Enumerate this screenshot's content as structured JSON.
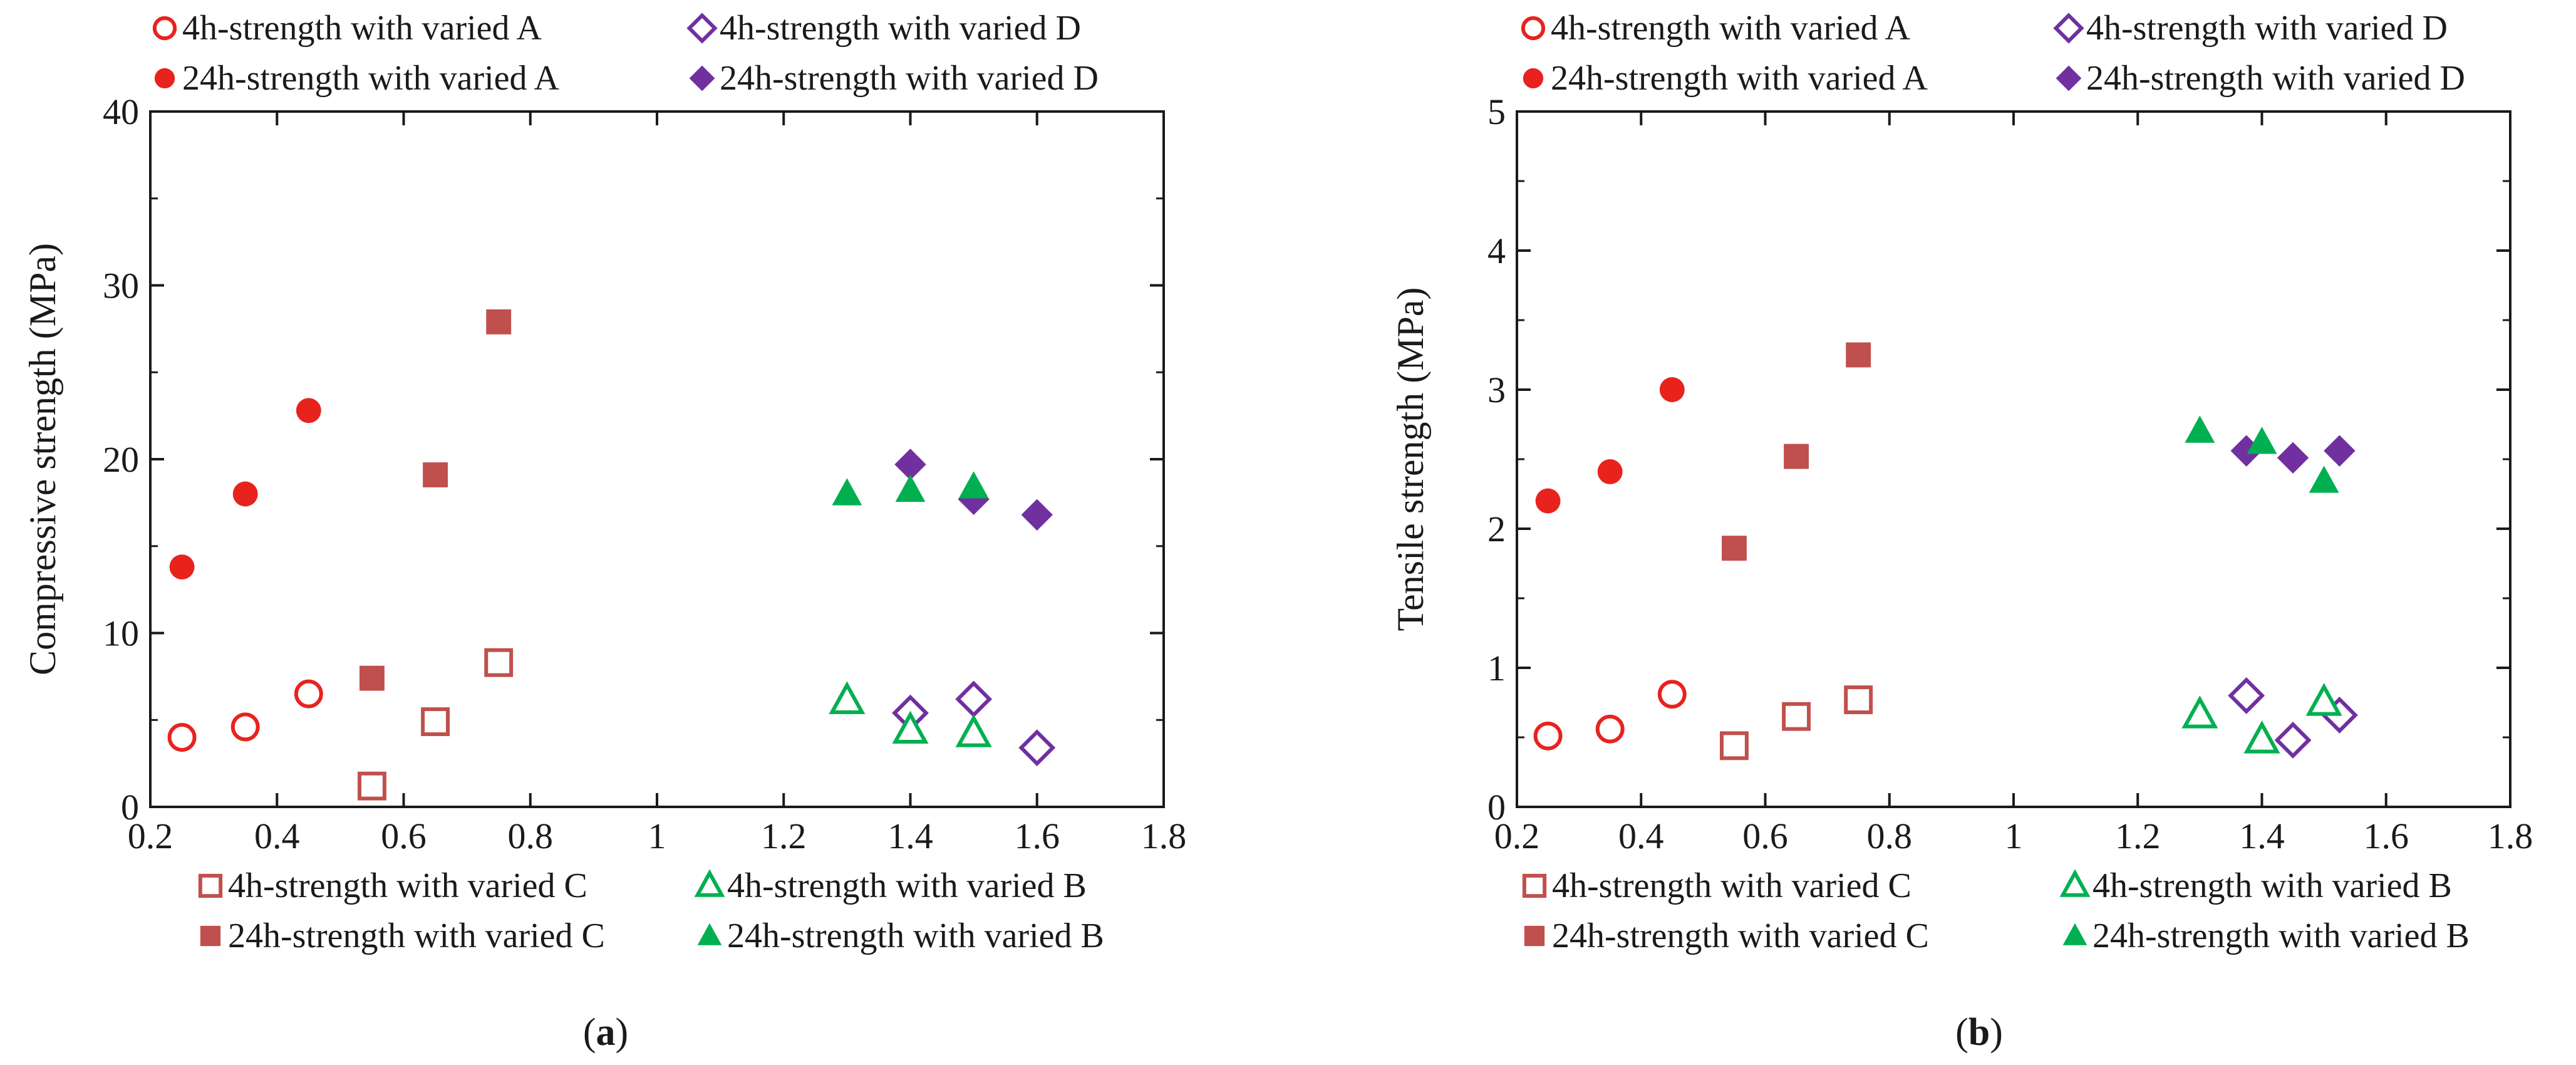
{
  "chart_data": [
    {
      "type": "scatter",
      "id": "a",
      "caption": "a",
      "title": "",
      "xlabel": "",
      "ylabel": "Compressive strength (MPa)",
      "xlim": [
        0.2,
        1.8
      ],
      "ylim": [
        0,
        40
      ],
      "xticks": [
        0.2,
        0.4,
        0.6,
        0.8,
        1,
        1.2,
        1.4,
        1.6,
        1.8
      ],
      "xtick_labels": [
        "0.2",
        "0.4",
        "0.6",
        "0.8",
        "1",
        "1.2",
        "1.4",
        "1.6",
        "1.8"
      ],
      "yticks": [
        0,
        10,
        20,
        30,
        40
      ],
      "ytick_labels": [
        "0",
        "10",
        "20",
        "30",
        "40"
      ],
      "series": [
        {
          "name": "4h-strength with varied A",
          "marker": "circle-open",
          "color": "#e8231e",
          "x": [
            0.25,
            0.35,
            0.45
          ],
          "y": [
            4.0,
            4.6,
            6.5
          ]
        },
        {
          "name": "24h-strength with varied A",
          "marker": "circle-filled",
          "color": "#e8231e",
          "x": [
            0.25,
            0.35,
            0.45
          ],
          "y": [
            13.8,
            18.0,
            22.8
          ]
        },
        {
          "name": "4h-strength with varied D",
          "marker": "diamond-open",
          "color": "#7030a0",
          "x": [
            1.4,
            1.5,
            1.6
          ],
          "y": [
            5.4,
            6.2,
            3.4
          ]
        },
        {
          "name": "24h-strength with varied D",
          "marker": "diamond-filled",
          "color": "#7030a0",
          "x": [
            1.4,
            1.5,
            1.6
          ],
          "y": [
            19.7,
            17.7,
            16.8
          ]
        },
        {
          "name": "4h-strength with varied C",
          "marker": "square-open",
          "color": "#c0504d",
          "x": [
            0.55,
            0.65,
            0.75
          ],
          "y": [
            1.2,
            4.9,
            8.3
          ]
        },
        {
          "name": "24h-strength with varied C",
          "marker": "square-filled",
          "color": "#c0504d",
          "x": [
            0.55,
            0.65,
            0.75
          ],
          "y": [
            7.4,
            19.1,
            27.9
          ]
        },
        {
          "name": "4h-strength with varied B",
          "marker": "triangle-open",
          "color": "#00b050",
          "x": [
            1.3,
            1.4,
            1.5
          ],
          "y": [
            6.1,
            4.4,
            4.2
          ]
        },
        {
          "name": "24h-strength with varied B",
          "marker": "triangle-filled",
          "color": "#00b050",
          "x": [
            1.3,
            1.4,
            1.5
          ],
          "y": [
            18.0,
            18.2,
            18.4
          ]
        }
      ],
      "legend_top": [
        "4h-strength with varied A",
        "4h-strength with varied D",
        "24h-strength with varied A",
        "24h-strength with varied D"
      ],
      "legend_bottom": [
        "4h-strength with varied C",
        "4h-strength with varied B",
        "24h-strength with varied C",
        "24h-strength with varied B"
      ]
    },
    {
      "type": "scatter",
      "id": "b",
      "caption": "b",
      "title": "",
      "xlabel": "",
      "ylabel": "Tensile strength (MPa)",
      "xlim": [
        0.2,
        1.8
      ],
      "ylim": [
        0,
        5
      ],
      "xticks": [
        0.2,
        0.4,
        0.6,
        0.8,
        1,
        1.2,
        1.4,
        1.6,
        1.8
      ],
      "xtick_labels": [
        "0.2",
        "0.4",
        "0.6",
        "0.8",
        "1",
        "1.2",
        "1.4",
        "1.6",
        "1.8"
      ],
      "yticks": [
        0,
        1,
        2,
        3,
        4,
        5
      ],
      "ytick_labels": [
        "0",
        "1",
        "2",
        "3",
        "4",
        "5"
      ],
      "series": [
        {
          "name": "4h-strength with varied A",
          "marker": "circle-open",
          "color": "#e8231e",
          "x": [
            0.25,
            0.35,
            0.45
          ],
          "y": [
            0.51,
            0.56,
            0.81
          ]
        },
        {
          "name": "24h-strength with varied A",
          "marker": "circle-filled",
          "color": "#e8231e",
          "x": [
            0.25,
            0.35,
            0.45
          ],
          "y": [
            2.2,
            2.41,
            3.0
          ]
        },
        {
          "name": "4h-strength with varied D",
          "marker": "diamond-open",
          "color": "#7030a0",
          "x": [
            1.375,
            1.45,
            1.525
          ],
          "y": [
            0.8,
            0.48,
            0.66
          ]
        },
        {
          "name": "24h-strength with varied D",
          "marker": "diamond-filled",
          "color": "#7030a0",
          "x": [
            1.375,
            1.45,
            1.525
          ],
          "y": [
            2.56,
            2.51,
            2.56
          ]
        },
        {
          "name": "4h-strength with varied C",
          "marker": "square-open",
          "color": "#c0504d",
          "x": [
            0.55,
            0.65,
            0.75
          ],
          "y": [
            0.44,
            0.65,
            0.77
          ]
        },
        {
          "name": "24h-strength with varied C",
          "marker": "square-filled",
          "color": "#c0504d",
          "x": [
            0.55,
            0.65,
            0.75
          ],
          "y": [
            1.86,
            2.52,
            3.25
          ]
        },
        {
          "name": "4h-strength with varied B",
          "marker": "triangle-open",
          "color": "#00b050",
          "x": [
            1.3,
            1.4,
            1.5
          ],
          "y": [
            0.66,
            0.48,
            0.75
          ]
        },
        {
          "name": "24h-strength with varied B",
          "marker": "triangle-filled",
          "color": "#00b050",
          "x": [
            1.3,
            1.4,
            1.5
          ],
          "y": [
            2.7,
            2.62,
            2.34
          ]
        }
      ],
      "legend_top": [
        "4h-strength with varied A",
        "4h-strength with varied D",
        "24h-strength with varied A",
        "24h-strength with varied D"
      ],
      "legend_bottom": [
        "4h-strength with varied C",
        "4h-strength with varied B",
        "24h-strength with varied C",
        "24h-strength with varied B"
      ]
    }
  ]
}
